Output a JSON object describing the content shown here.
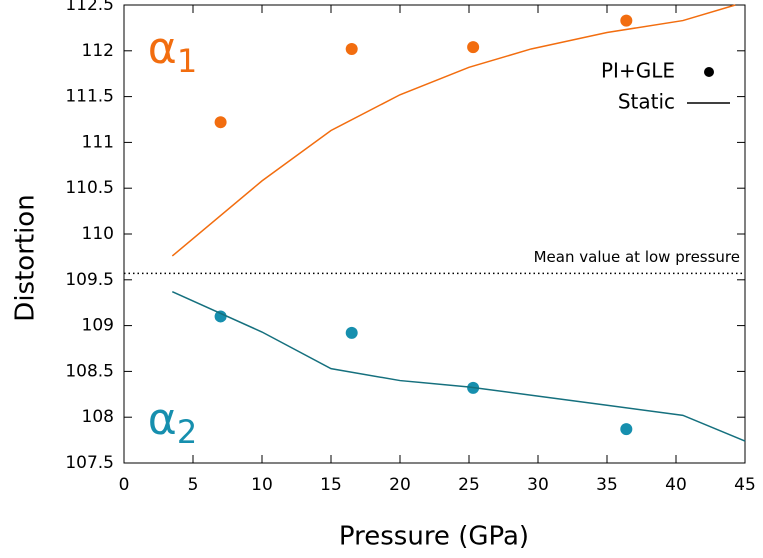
{
  "chart_data": {
    "type": "line",
    "xlabel": "Pressure (GPa)",
    "ylabel": "Distortion",
    "xlim": [
      0,
      45
    ],
    "xticks": [
      0,
      5,
      10,
      15,
      20,
      25,
      30,
      35,
      40,
      45
    ],
    "ylim": [
      107.5,
      112.5
    ],
    "yticks": [
      107.5,
      108,
      108.5,
      109,
      109.5,
      110,
      110.5,
      111,
      111.5,
      112,
      112.5
    ],
    "legend": [
      "PI+GLE",
      "Static"
    ],
    "series": [
      {
        "style": "points",
        "color": "#f26d0f",
        "x": [
          7,
          16.5,
          25.3,
          36.4
        ],
        "values": [
          111.22,
          112.02,
          112.04,
          112.33
        ]
      },
      {
        "style": "points",
        "color": "#168fae",
        "x": [
          7,
          16.5,
          25.3,
          36.4
        ],
        "values": [
          109.1,
          108.92,
          108.32,
          107.87
        ]
      },
      {
        "style": "line",
        "color": "#f26d0f",
        "x": [
          3.5,
          10,
          15,
          20,
          25,
          29.5,
          35,
          40.5,
          44.3
        ],
        "values": [
          109.76,
          110.58,
          111.13,
          111.52,
          111.82,
          112.02,
          112.2,
          112.33,
          112.5
        ]
      },
      {
        "style": "line",
        "color": "#15707e",
        "x": [
          3.5,
          10,
          15,
          20,
          25,
          30,
          35,
          40.5,
          45
        ],
        "values": [
          109.37,
          108.93,
          108.53,
          108.4,
          108.33,
          108.23,
          108.13,
          108.02,
          107.74
        ]
      }
    ],
    "hline": {
      "value": 109.57,
      "label": "Mean value at low pressure"
    },
    "annotations": [
      {
        "text": "α",
        "subscript": "1",
        "color": "#f26d0f",
        "x": 1,
        "y": 112.0
      },
      {
        "text": "α",
        "subscript": "2",
        "color": "#168fae",
        "x": 1,
        "y": 107.95
      }
    ]
  }
}
